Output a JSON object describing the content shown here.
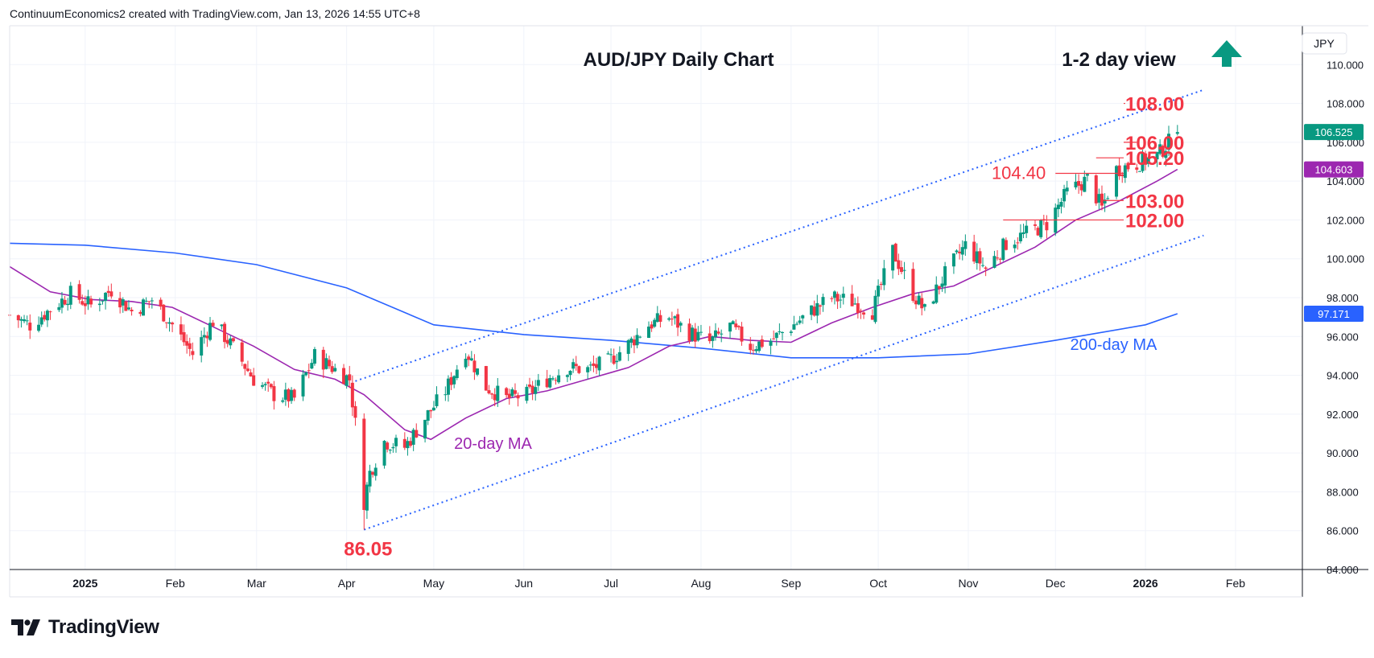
{
  "header": {
    "created_by": "ContinuumEconomics2 created with TradingView.com, Jan 13, 2026 14:55 UTC+8"
  },
  "brand": {
    "name": "TradingView",
    "icon": "tradingview-logo-icon"
  },
  "colors": {
    "up": "#089981",
    "down": "#f23645",
    "ma20": "#9c27b0",
    "ma200": "#2962ff",
    "channel": "#2962ff",
    "level": "#f23645",
    "grid": "#f0f3fa",
    "axis_text": "#131722",
    "arrow": "#089981",
    "last_price_bg": "#089981",
    "ma20_bg": "#9c27b0",
    "ma200_bg": "#2962ff"
  },
  "chart_data": {
    "type": "candlestick",
    "title": "AUD/JPY Daily Chart",
    "view": {
      "text": "1-2 day view",
      "direction": "up",
      "icon": "arrow-up-icon"
    },
    "currency": "JPY",
    "x_tick_labels": [
      "2025",
      "Feb",
      "Mar",
      "Apr",
      "May",
      "Jun",
      "Jul",
      "Aug",
      "Sep",
      "Oct",
      "Nov",
      "Dec",
      "2026",
      "Feb"
    ],
    "x_tick_dates": [
      "2025-01-01",
      "2025-02-01",
      "2025-03-01",
      "2025-04-01",
      "2025-05-01",
      "2025-06-01",
      "2025-07-01",
      "2025-08-01",
      "2025-09-01",
      "2025-10-01",
      "2025-11-01",
      "2025-12-01",
      "2026-01-01",
      "2026-02-01"
    ],
    "x_range": [
      "2024-12-06",
      "2026-02-24"
    ],
    "y_tick_labels": [
      "84.000",
      "86.000",
      "88.000",
      "90.000",
      "92.000",
      "94.000",
      "96.000",
      "98.000",
      "100.000",
      "102.000",
      "104.000",
      "106.000",
      "108.000",
      "110.000"
    ],
    "y_ticks": [
      84,
      86,
      88,
      90,
      92,
      94,
      96,
      98,
      100,
      102,
      104,
      106,
      108,
      110
    ],
    "ylim": [
      84,
      112
    ],
    "grid": true,
    "price_labels": {
      "last": {
        "value": 106.525,
        "text": "106.525"
      },
      "ma20": {
        "value": 104.603,
        "text": "104.603"
      },
      "ma200": {
        "value": 97.171,
        "text": "97.171"
      }
    },
    "levels": [
      {
        "value": 108.0,
        "text": "108.00",
        "from": "2025-12-25"
      },
      {
        "value": 106.0,
        "text": "106.00",
        "from": "2025-12-29"
      },
      {
        "value": 105.2,
        "text": "105.20",
        "from": "2025-12-15"
      },
      {
        "value": 104.4,
        "text": "104.40",
        "from": "2025-12-01"
      },
      {
        "value": 103.0,
        "text": "103.00",
        "from": "2025-12-17"
      },
      {
        "value": 102.0,
        "text": "102.00",
        "from": "2025-11-13"
      }
    ],
    "annotations": [
      {
        "text": "86.05",
        "date": "2025-04-07",
        "value": 86.05
      },
      {
        "text": "20-day MA",
        "date": "2025-05-08",
        "value": 90.5
      },
      {
        "text": "200-day MA",
        "date": "2025-12-21",
        "value": 95.6
      }
    ],
    "channel": {
      "upper": [
        {
          "date": "2025-04-04",
          "value": 93.7
        },
        {
          "date": "2026-01-21",
          "value": 108.7
        }
      ],
      "lower": [
        {
          "date": "2025-04-07",
          "value": 86.05
        },
        {
          "date": "2026-01-21",
          "value": 101.2
        }
      ]
    },
    "series": [
      {
        "name": "AUD/JPY",
        "style": "candles",
        "points": [
          {
            "date": "2024-12-06",
            "value": 97.1
          },
          {
            "date": "2024-12-13",
            "value": 96.6
          },
          {
            "date": "2024-12-20",
            "value": 97.4
          },
          {
            "date": "2024-12-27",
            "value": 98.2
          },
          {
            "date": "2025-01-03",
            "value": 97.6
          },
          {
            "date": "2025-01-10",
            "value": 98.4
          },
          {
            "date": "2025-01-17",
            "value": 97.3
          },
          {
            "date": "2025-01-24",
            "value": 97.9
          },
          {
            "date": "2025-01-31",
            "value": 96.6
          },
          {
            "date": "2025-02-07",
            "value": 95.1
          },
          {
            "date": "2025-02-14",
            "value": 96.8
          },
          {
            "date": "2025-02-21",
            "value": 95.4
          },
          {
            "date": "2025-02-28",
            "value": 93.8
          },
          {
            "date": "2025-03-07",
            "value": 93.0
          },
          {
            "date": "2025-03-14",
            "value": 92.8
          },
          {
            "date": "2025-03-21",
            "value": 95.0
          },
          {
            "date": "2025-03-28",
            "value": 94.3
          },
          {
            "date": "2025-04-02",
            "value": 93.8
          },
          {
            "date": "2025-04-04",
            "value": 91.5
          },
          {
            "date": "2025-04-07",
            "value": 87.5
          },
          {
            "date": "2025-04-09",
            "value": 89.0
          },
          {
            "date": "2025-04-14",
            "value": 90.6
          },
          {
            "date": "2025-04-21",
            "value": 90.3
          },
          {
            "date": "2025-04-28",
            "value": 91.8
          },
          {
            "date": "2025-05-05",
            "value": 93.2
          },
          {
            "date": "2025-05-12",
            "value": 95.3
          },
          {
            "date": "2025-05-19",
            "value": 93.4
          },
          {
            "date": "2025-05-26",
            "value": 92.8
          },
          {
            "date": "2025-06-02",
            "value": 93.0
          },
          {
            "date": "2025-06-09",
            "value": 93.8
          },
          {
            "date": "2025-06-16",
            "value": 94.4
          },
          {
            "date": "2025-06-23",
            "value": 94.3
          },
          {
            "date": "2025-06-30",
            "value": 94.7
          },
          {
            "date": "2025-07-07",
            "value": 95.6
          },
          {
            "date": "2025-07-14",
            "value": 96.6
          },
          {
            "date": "2025-07-21",
            "value": 97.0
          },
          {
            "date": "2025-07-28",
            "value": 96.2
          },
          {
            "date": "2025-08-04",
            "value": 95.7
          },
          {
            "date": "2025-08-11",
            "value": 96.5
          },
          {
            "date": "2025-08-18",
            "value": 95.5
          },
          {
            "date": "2025-08-25",
            "value": 95.8
          },
          {
            "date": "2025-09-01",
            "value": 96.5
          },
          {
            "date": "2025-09-08",
            "value": 97.3
          },
          {
            "date": "2025-09-15",
            "value": 98.0
          },
          {
            "date": "2025-09-22",
            "value": 97.8
          },
          {
            "date": "2025-09-29",
            "value": 97.3
          },
          {
            "date": "2025-10-06",
            "value": 100.4
          },
          {
            "date": "2025-10-13",
            "value": 98.2
          },
          {
            "date": "2025-10-17",
            "value": 97.3
          },
          {
            "date": "2025-10-24",
            "value": 99.2
          },
          {
            "date": "2025-10-31",
            "value": 100.7
          },
          {
            "date": "2025-11-07",
            "value": 99.5
          },
          {
            "date": "2025-11-14",
            "value": 100.8
          },
          {
            "date": "2025-11-21",
            "value": 101.3
          },
          {
            "date": "2025-11-28",
            "value": 101.8
          },
          {
            "date": "2025-12-05",
            "value": 103.4
          },
          {
            "date": "2025-12-12",
            "value": 104.1
          },
          {
            "date": "2025-12-17",
            "value": 102.6
          },
          {
            "date": "2025-12-22",
            "value": 104.6
          },
          {
            "date": "2025-12-29",
            "value": 104.9
          },
          {
            "date": "2026-01-05",
            "value": 105.3
          },
          {
            "date": "2026-01-12",
            "value": 106.525
          }
        ]
      },
      {
        "name": "20-day MA",
        "style": "line",
        "points": [
          {
            "date": "2024-12-06",
            "value": 99.6
          },
          {
            "date": "2024-12-20",
            "value": 98.3
          },
          {
            "date": "2025-01-03",
            "value": 97.9
          },
          {
            "date": "2025-01-17",
            "value": 97.8
          },
          {
            "date": "2025-01-31",
            "value": 97.5
          },
          {
            "date": "2025-02-14",
            "value": 96.5
          },
          {
            "date": "2025-02-28",
            "value": 95.5
          },
          {
            "date": "2025-03-14",
            "value": 94.3
          },
          {
            "date": "2025-03-28",
            "value": 93.8
          },
          {
            "date": "2025-04-07",
            "value": 93.0
          },
          {
            "date": "2025-04-21",
            "value": 91.2
          },
          {
            "date": "2025-04-30",
            "value": 90.7
          },
          {
            "date": "2025-05-12",
            "value": 91.8
          },
          {
            "date": "2025-05-26",
            "value": 92.8
          },
          {
            "date": "2025-06-09",
            "value": 93.2
          },
          {
            "date": "2025-06-23",
            "value": 93.8
          },
          {
            "date": "2025-07-07",
            "value": 94.4
          },
          {
            "date": "2025-07-21",
            "value": 95.5
          },
          {
            "date": "2025-08-04",
            "value": 96.0
          },
          {
            "date": "2025-08-18",
            "value": 95.8
          },
          {
            "date": "2025-09-01",
            "value": 95.7
          },
          {
            "date": "2025-09-15",
            "value": 96.7
          },
          {
            "date": "2025-09-29",
            "value": 97.5
          },
          {
            "date": "2025-10-13",
            "value": 98.2
          },
          {
            "date": "2025-10-27",
            "value": 98.6
          },
          {
            "date": "2025-11-10",
            "value": 99.6
          },
          {
            "date": "2025-11-24",
            "value": 100.6
          },
          {
            "date": "2025-12-08",
            "value": 102.0
          },
          {
            "date": "2025-12-22",
            "value": 102.9
          },
          {
            "date": "2026-01-05",
            "value": 104.0
          },
          {
            "date": "2026-01-12",
            "value": 104.603
          }
        ]
      },
      {
        "name": "200-day MA",
        "style": "line",
        "points": [
          {
            "date": "2024-12-06",
            "value": 100.8
          },
          {
            "date": "2025-01-01",
            "value": 100.7
          },
          {
            "date": "2025-02-01",
            "value": 100.3
          },
          {
            "date": "2025-03-01",
            "value": 99.7
          },
          {
            "date": "2025-04-01",
            "value": 98.5
          },
          {
            "date": "2025-05-01",
            "value": 96.6
          },
          {
            "date": "2025-06-01",
            "value": 96.1
          },
          {
            "date": "2025-07-01",
            "value": 95.8
          },
          {
            "date": "2025-08-01",
            "value": 95.4
          },
          {
            "date": "2025-09-01",
            "value": 94.9
          },
          {
            "date": "2025-10-01",
            "value": 94.9
          },
          {
            "date": "2025-11-01",
            "value": 95.1
          },
          {
            "date": "2025-12-01",
            "value": 95.8
          },
          {
            "date": "2026-01-01",
            "value": 96.6
          },
          {
            "date": "2026-01-12",
            "value": 97.171
          }
        ]
      }
    ]
  }
}
